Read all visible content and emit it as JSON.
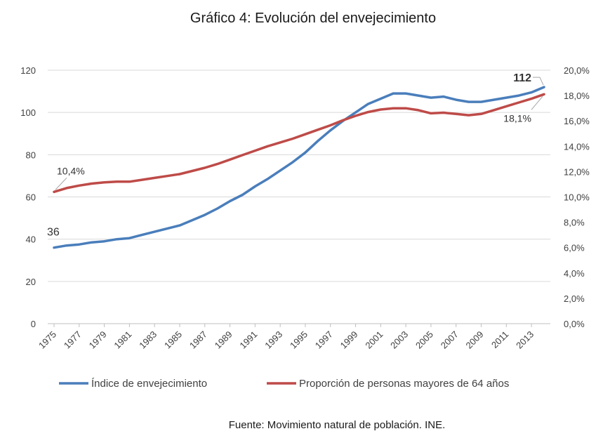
{
  "chart_data": {
    "type": "line",
    "title": "Gráfico 4: Evolución del envejecimiento",
    "source": "Fuente: Movimiento natural de población. INE.",
    "x": [
      1975,
      1976,
      1977,
      1978,
      1979,
      1980,
      1981,
      1982,
      1983,
      1984,
      1985,
      1986,
      1987,
      1988,
      1989,
      1990,
      1991,
      1992,
      1993,
      1994,
      1995,
      1996,
      1997,
      1998,
      1999,
      2000,
      2001,
      2002,
      2003,
      2004,
      2005,
      2006,
      2007,
      2008,
      2009,
      2010,
      2011,
      2012,
      2013,
      2014
    ],
    "x_tick_labels": [
      "1975",
      "1977",
      "1979",
      "1981",
      "1983",
      "1985",
      "1987",
      "1989",
      "1991",
      "1993",
      "1995",
      "1997",
      "1999",
      "2001",
      "2003",
      "2005",
      "2007",
      "2009",
      "2011",
      "2013"
    ],
    "y_left": {
      "range": [
        0,
        120
      ],
      "ticks": [
        "0",
        "20",
        "40",
        "60",
        "80",
        "100",
        "120"
      ]
    },
    "y_right": {
      "range": [
        0,
        20
      ],
      "ticks": [
        "0,0%",
        "2,0%",
        "4,0%",
        "6,0%",
        "8,0%",
        "10,0%",
        "12,0%",
        "14,0%",
        "16,0%",
        "18,0%",
        "20,0%"
      ]
    },
    "grid": true,
    "legend_position": "bottom",
    "series": [
      {
        "name": "Índice de envejecimiento",
        "axis": "left",
        "color": "#4a7ebb",
        "values": [
          36,
          37,
          37.5,
          38.5,
          39,
          40,
          40.5,
          42,
          43.5,
          45,
          46.5,
          49,
          51.5,
          54.5,
          58,
          61,
          65,
          68.5,
          72.5,
          76.5,
          81,
          86.5,
          91.5,
          96,
          100,
          104,
          106.5,
          109,
          109,
          108,
          107,
          107.5,
          106,
          105,
          105,
          106,
          107,
          108,
          109.5,
          112
        ]
      },
      {
        "name": "Proporción de personas mayores de 64 años",
        "axis": "right",
        "color": "#be4b48",
        "values": [
          10.4,
          10.7,
          10.9,
          11.05,
          11.15,
          11.2,
          11.2,
          11.35,
          11.5,
          11.65,
          11.8,
          12.05,
          12.3,
          12.6,
          12.95,
          13.3,
          13.65,
          14,
          14.3,
          14.6,
          14.95,
          15.3,
          15.65,
          16.05,
          16.4,
          16.7,
          16.9,
          17,
          17,
          16.85,
          16.6,
          16.65,
          16.55,
          16.45,
          16.55,
          16.85,
          17.15,
          17.45,
          17.75,
          18.1
        ]
      }
    ],
    "annotations": [
      {
        "text": "36",
        "series": 0,
        "x": 1975
      },
      {
        "text": "10,4%",
        "series": 1,
        "x": 1975
      },
      {
        "text": "112",
        "series": 0,
        "x": 2014
      },
      {
        "text": "18,1%",
        "series": 1,
        "x": 2014
      }
    ]
  }
}
